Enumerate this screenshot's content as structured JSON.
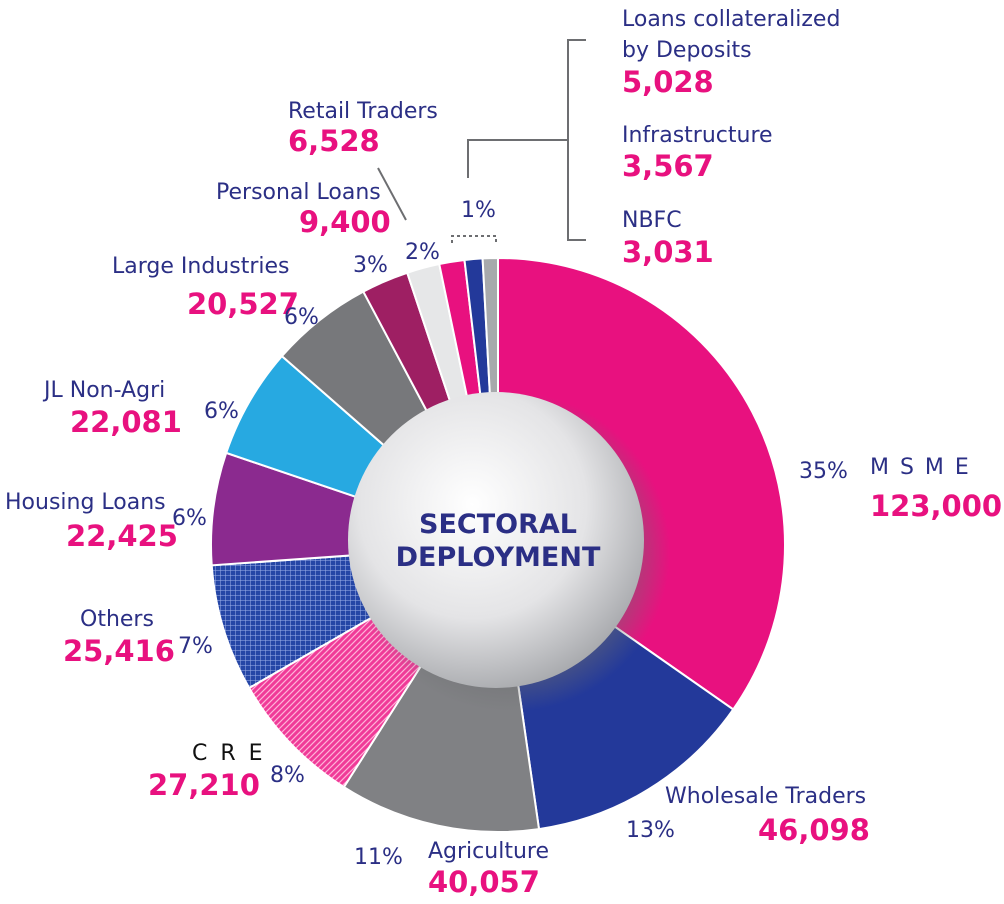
{
  "chart_data": {
    "type": "pie",
    "title": "SECTORAL DEPLOYMENT",
    "center_title": [
      "SECTORAL",
      "DEPLOYMENT"
    ],
    "slices": [
      {
        "name": "M S M E",
        "value": "123,000",
        "pct": "35%",
        "num": 123000,
        "color": "#e8117f",
        "pattern": "solid"
      },
      {
        "name": "Wholesale Traders",
        "value": "46,098",
        "pct": "13%",
        "num": 46098,
        "color": "#23399a",
        "pattern": "solid"
      },
      {
        "name": "Agriculture",
        "value": "40,057",
        "pct": "11%",
        "num": 40057,
        "color": "#808184",
        "pattern": "solid"
      },
      {
        "name": "C R E",
        "value": "27,210",
        "pct": "8%",
        "num": 27210,
        "color": "#f03a98",
        "pattern": "hatch"
      },
      {
        "name": "Others",
        "value": "25,416",
        "pct": "7%",
        "num": 25416,
        "color": "#2546a6",
        "pattern": "grid"
      },
      {
        "name": "Housing Loans",
        "value": "22,425",
        "pct": "6%",
        "num": 22425,
        "color": "#8b2a8f",
        "pattern": "solid"
      },
      {
        "name": "JL Non-Agri",
        "value": "22,081",
        "pct": "6%",
        "num": 22081,
        "color": "#27a9e1",
        "pattern": "solid"
      },
      {
        "name": "Large Industries",
        "value": "20,527",
        "pct": "6%",
        "num": 20527,
        "color": "#77787b",
        "pattern": "solid"
      },
      {
        "name": "Personal Loans",
        "value": "9,400",
        "pct": "3%",
        "num": 9400,
        "color": "#9e1f63",
        "pattern": "solid"
      },
      {
        "name": "Retail Traders",
        "value": "6,528",
        "pct": "2%",
        "num": 6528,
        "color": "#e6e7e8",
        "pattern": "solid"
      },
      {
        "name": "Loans collateralized by Deposits",
        "value": "5,028",
        "pct": "",
        "num": 5028,
        "color": "#e8117f",
        "pattern": "solid"
      },
      {
        "name": "Infrastructure",
        "value": "3,567",
        "pct": "",
        "num": 3567,
        "color": "#23399a",
        "pattern": "solid"
      },
      {
        "name": "NBFC",
        "value": "3,031",
        "pct": "",
        "num": 3031,
        "color": "#a7a9ac",
        "pattern": "solid"
      }
    ],
    "group_pct": "1%"
  }
}
